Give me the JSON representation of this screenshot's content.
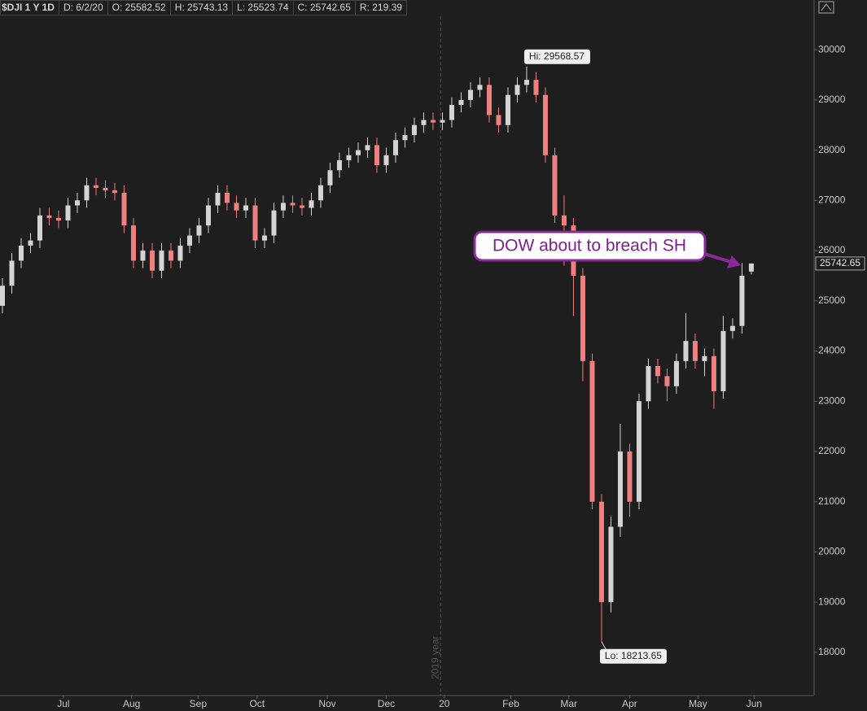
{
  "chart_data": {
    "type": "candlestick",
    "header": [
      "$DJI 1 Y 1D",
      "D: 6/2/20",
      "O: 25582.52",
      "H: 25743.13",
      "L: 25523.74",
      "C: 25742.65",
      "R: 219.39"
    ],
    "open": [
      24900,
      25300,
      25800,
      26100,
      26200,
      26700,
      26650,
      26600,
      26900,
      27000,
      27300,
      27250,
      27200,
      27150,
      26500,
      25800,
      26000,
      25600,
      26000,
      25800,
      26100,
      26300,
      26500,
      26900,
      27150,
      26950,
      26800,
      26900,
      26200,
      26300,
      26800,
      26950,
      26900,
      26850,
      27000,
      27300,
      27600,
      27800,
      27900,
      28000,
      28100,
      27700,
      27900,
      28200,
      28300,
      28500,
      28600,
      28550,
      28600,
      28900,
      29000,
      29200,
      29300,
      28700,
      28500,
      29100,
      29300,
      29400,
      29100,
      27900,
      26700,
      26500,
      25500,
      23800,
      21000,
      19000,
      20500,
      22000,
      21000,
      23000,
      23700,
      23500,
      23300,
      23800,
      24200,
      23800,
      23900,
      23200,
      24400,
      24500,
      25582.52
    ],
    "high": [
      25450,
      25950,
      26250,
      26350,
      26850,
      26850,
      26800,
      27050,
      27150,
      27450,
      27450,
      27400,
      27350,
      27300,
      26650,
      26150,
      26150,
      26150,
      26150,
      26250,
      26450,
      26650,
      27050,
      27300,
      27300,
      27100,
      27050,
      27050,
      26450,
      26950,
      27100,
      27100,
      27050,
      27150,
      27450,
      27750,
      27950,
      28050,
      28150,
      28250,
      28250,
      28050,
      28350,
      28450,
      28650,
      28750,
      28750,
      28750,
      29050,
      29150,
      29350,
      29450,
      29450,
      28850,
      29250,
      29450,
      29568.57,
      29550,
      29250,
      28050,
      27100,
      26650,
      25650,
      23950,
      21150,
      20700,
      22550,
      22150,
      23150,
      23850,
      23850,
      23650,
      23950,
      24750,
      24350,
      24050,
      24050,
      24700,
      24650,
      25750,
      25743.13
    ],
    "low": [
      24750,
      25150,
      25650,
      25950,
      26050,
      26500,
      26450,
      26450,
      26750,
      26850,
      27100,
      27050,
      27000,
      26350,
      25650,
      25650,
      25450,
      25450,
      25650,
      25650,
      25950,
      26150,
      26350,
      26750,
      26800,
      26650,
      26650,
      26050,
      26050,
      26150,
      26650,
      26750,
      26700,
      26700,
      26850,
      27150,
      27450,
      27650,
      27750,
      27850,
      27550,
      27550,
      27750,
      28050,
      28150,
      28350,
      28400,
      28400,
      28450,
      28750,
      28850,
      29050,
      28550,
      28350,
      28350,
      28950,
      29150,
      28950,
      27750,
      26550,
      25700,
      24700,
      23400,
      20850,
      18213.65,
      18800,
      20300,
      20700,
      20850,
      22850,
      23350,
      23000,
      23150,
      23650,
      23650,
      23500,
      22850,
      23050,
      24250,
      24350,
      25523.74
    ],
    "close": [
      25300,
      25800,
      26100,
      26200,
      26700,
      26650,
      26600,
      26900,
      27000,
      27300,
      27250,
      27200,
      27150,
      26500,
      25800,
      26000,
      25600,
      26000,
      25800,
      26100,
      26300,
      26500,
      26900,
      27150,
      26950,
      26800,
      26900,
      26200,
      26300,
      26800,
      26950,
      26900,
      26850,
      27000,
      27300,
      27600,
      27800,
      27900,
      28000,
      28100,
      27700,
      27900,
      28200,
      28300,
      28500,
      28600,
      28550,
      28600,
      28900,
      29000,
      29200,
      29300,
      28700,
      28500,
      29100,
      29300,
      29400,
      29100,
      27900,
      26700,
      26500,
      25500,
      23800,
      21000,
      19000,
      20500,
      22000,
      21000,
      23000,
      23700,
      23500,
      23300,
      23800,
      24200,
      23800,
      23900,
      23200,
      24400,
      24500,
      25500,
      25742.65
    ],
    "up_color": "#d4d4d4",
    "down_color": "#f07f7f",
    "xlim": [
      -0.26,
      86.7
    ],
    "xticks": [
      {
        "value": 6.5,
        "label": "Jul"
      },
      {
        "value": 13.8,
        "label": "Aug"
      },
      {
        "value": 20.9,
        "label": "Sep"
      },
      {
        "value": 27.2,
        "label": "Oct"
      },
      {
        "value": 34.7,
        "label": "Nov"
      },
      {
        "value": 41.0,
        "label": "Dec"
      },
      {
        "value": 47.2,
        "label": "20"
      },
      {
        "value": 54.3,
        "label": "Feb"
      },
      {
        "value": 60.5,
        "label": "Mar"
      },
      {
        "value": 67.0,
        "label": "Apr"
      },
      {
        "value": 74.3,
        "label": "May"
      },
      {
        "value": 80.3,
        "label": "Jun"
      }
    ],
    "ylim": [
      17140,
      30990
    ],
    "yticks": [
      18000,
      19000,
      20000,
      21000,
      22000,
      23000,
      24000,
      25000,
      26000,
      27000,
      28000,
      29000,
      30000
    ],
    "year_divider": {
      "value": 46.8,
      "label": "2019 year"
    },
    "hi_label": "Hi: 29568.57",
    "lo_label": "Lo: 18213.65",
    "annotation": "DOW about to breach SH"
  }
}
